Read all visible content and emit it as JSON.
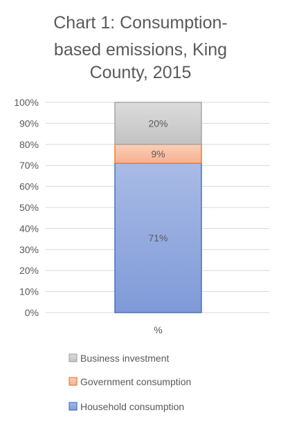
{
  "chart_data": {
    "type": "bar",
    "stacked": true,
    "title_lines": [
      "Chart 1: Consumption-",
      "based emissions, King",
      "County, 2015"
    ],
    "categories": [
      "%"
    ],
    "y_ticks": [
      "0%",
      "10%",
      "20%",
      "30%",
      "40%",
      "50%",
      "60%",
      "70%",
      "80%",
      "90%",
      "100%"
    ],
    "ylim": [
      0,
      100
    ],
    "grid": true,
    "legend_position": "bottom",
    "series": [
      {
        "name": "Household consumption",
        "values": [
          71
        ],
        "label": "71%",
        "color": "#7f9ad8",
        "border": "#4472c4"
      },
      {
        "name": "Government consumption",
        "values": [
          9
        ],
        "label": "9%",
        "color": "#f8bda0",
        "border": "#ed7d31"
      },
      {
        "name": "Business investment",
        "values": [
          20
        ],
        "label": "20%",
        "color": "#cfcfcf",
        "border": "#a5a5a5"
      }
    ],
    "legend_order": [
      2,
      1,
      0
    ]
  }
}
